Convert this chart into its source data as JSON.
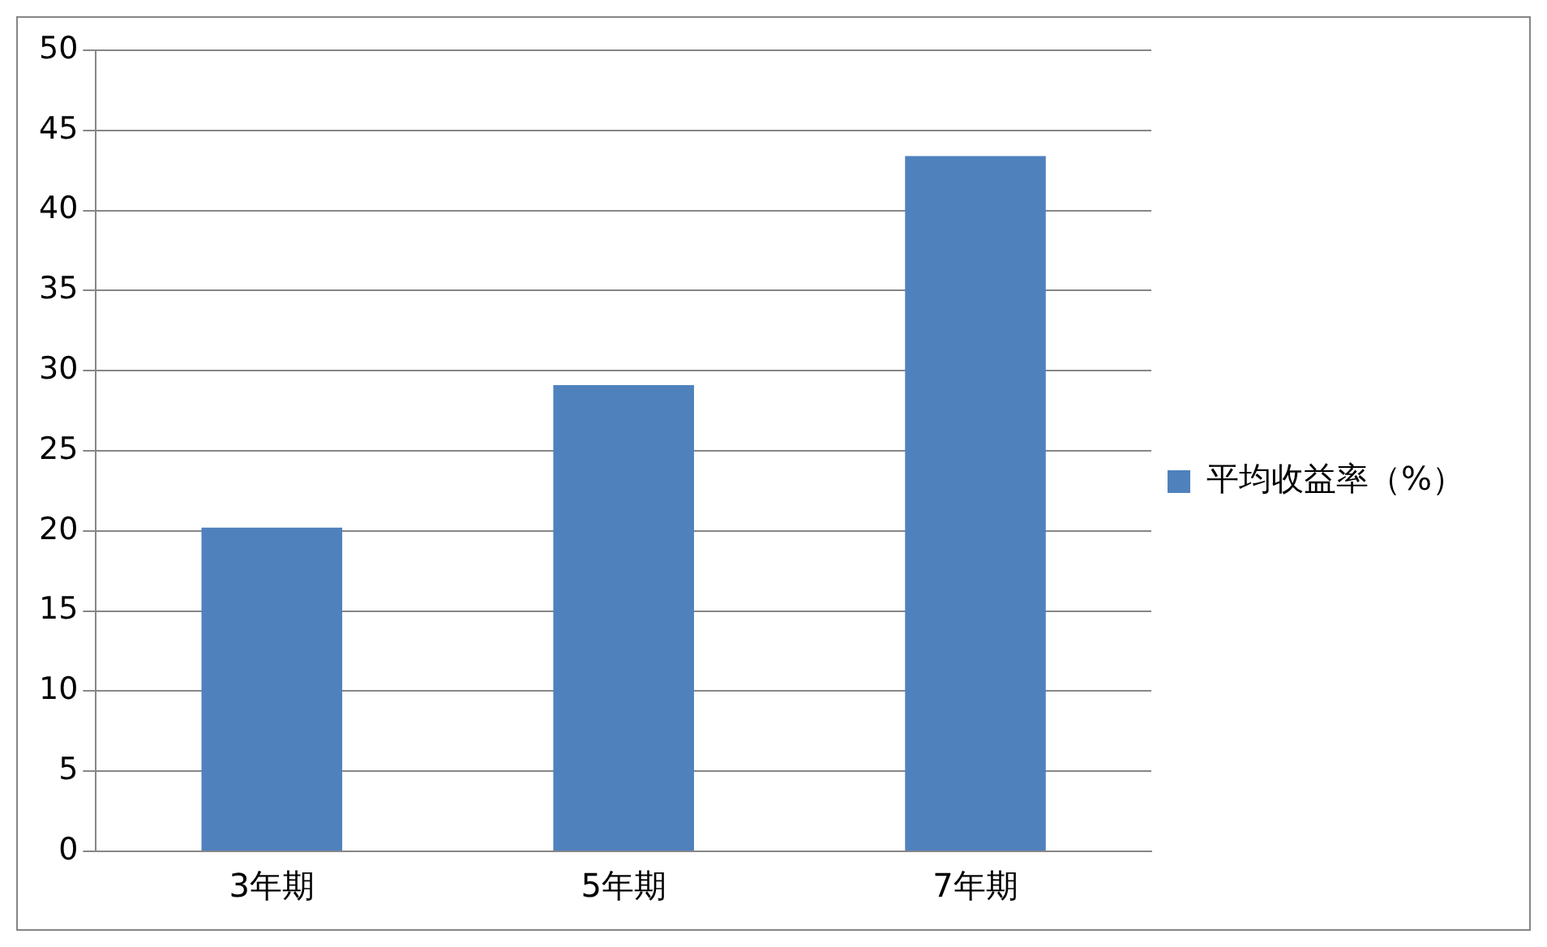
{
  "chart_data": {
    "type": "bar",
    "categories": [
      "3年期",
      "5年期",
      "7年期"
    ],
    "series": [
      {
        "name": "平均收益率（%）",
        "color": "#4f81bd",
        "values": [
          20.2,
          29.1,
          43.4
        ]
      }
    ],
    "ylim": [
      0,
      50
    ],
    "yticks": [
      0,
      5,
      10,
      15,
      20,
      25,
      30,
      35,
      40,
      45,
      50
    ],
    "grid": "y",
    "legend": "right"
  }
}
